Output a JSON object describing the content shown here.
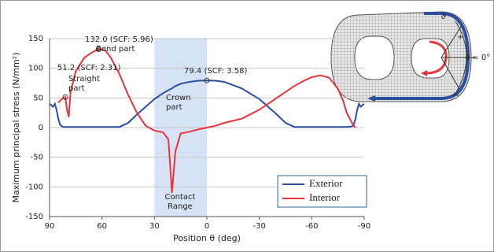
{
  "chart_data": {
    "type": "line",
    "y_label": "Maximum principal stress (N/mm²)",
    "x_label": "Position θ (deg)",
    "x": [
      90,
      89,
      88,
      87,
      86,
      85,
      84,
      83,
      82,
      81,
      80,
      79,
      78,
      75,
      70,
      65,
      62,
      58,
      55,
      50,
      45,
      40,
      35,
      30,
      25,
      22,
      20,
      18,
      15,
      10,
      5,
      0,
      -5,
      -10,
      -20,
      -30,
      -40,
      -45,
      -50,
      -55,
      -60,
      -65,
      -70,
      -75,
      -78,
      -80,
      -83,
      -84,
      -85,
      -86,
      -87,
      -88,
      -89,
      -90
    ],
    "series": [
      {
        "name": "Exterior",
        "color": "#2b4fa0",
        "values": [
          40,
          38,
          35,
          40,
          30,
          15,
          5,
          2,
          1,
          1,
          1,
          1,
          1,
          1,
          1,
          1,
          1,
          1,
          1,
          1,
          8,
          22,
          35,
          48,
          58,
          63,
          66,
          70,
          74,
          77,
          79,
          79.4,
          79,
          77,
          66,
          48,
          22,
          8,
          1,
          1,
          1,
          1,
          1,
          1,
          1,
          1,
          2,
          5,
          15,
          30,
          40,
          35,
          38,
          40
        ]
      },
      {
        "name": "Interior",
        "color": "#e8333a",
        "values": [
          null,
          null,
          null,
          null,
          null,
          42,
          45,
          48,
          50,
          51.2,
          30,
          18,
          60,
          95,
          118,
          128,
          132.0,
          130,
          118,
          90,
          55,
          25,
          3,
          -5,
          -8,
          -20,
          -110,
          -40,
          -10,
          -7,
          -3,
          0,
          3,
          8,
          15,
          30,
          50,
          60,
          70,
          78,
          85,
          88,
          84,
          65,
          45,
          25,
          8,
          3,
          0,
          null,
          null,
          null,
          null,
          null
        ]
      }
    ],
    "xlim": [
      90,
      -90
    ],
    "xticks": [
      90,
      60,
      30,
      0,
      -30,
      -60,
      -90
    ],
    "ylim": [
      -150,
      150
    ],
    "yticks": [
      -150,
      -100,
      -50,
      0,
      50,
      100,
      150
    ],
    "grid": true,
    "legend": "lower right",
    "shaded_range": [
      30,
      0
    ],
    "shade_color": "#d6e2f5",
    "annotations": [
      "132.0 (SCF: 5.96)",
      "Bend part",
      "51.2 (SCF: 2.31)",
      "Straight part",
      "79.4 (SCF: 3.58)",
      "Crown part",
      "Contact Range"
    ]
  },
  "inset": {
    "labels": [
      "ϑ",
      "+",
      "ϑ = 0°",
      "−"
    ]
  }
}
